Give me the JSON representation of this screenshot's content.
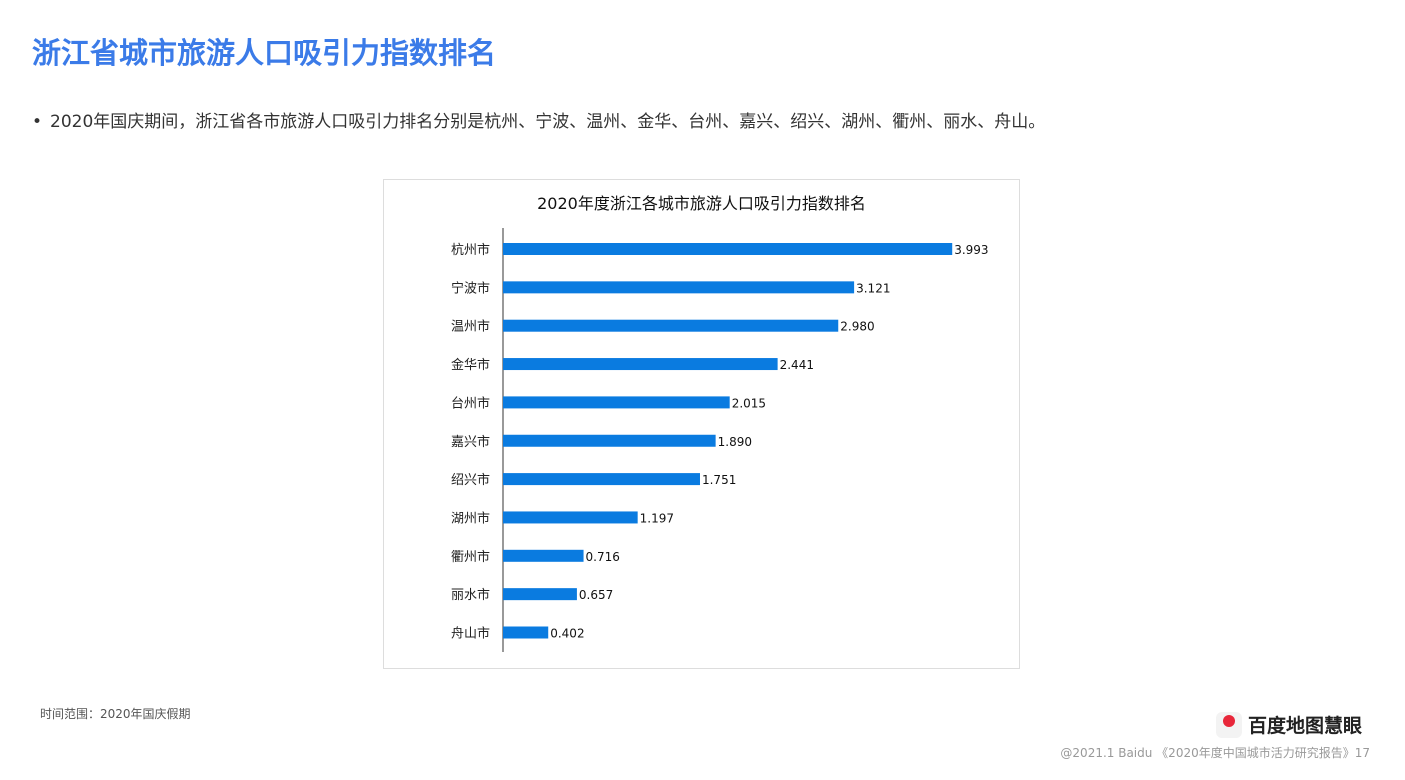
{
  "title": "浙江省城市旅游人口吸引力指数排名",
  "bullet": "2020年国庆期间，浙江省各市旅游人口吸引力排名分别是杭州、宁波、温州、金华、台州、嘉兴、绍兴、湖州、衢州、丽水、舟山。",
  "note": "时间范围：2020年国庆假期",
  "logo": "百度地图慧眼",
  "footer": "@2021.1 Baidu 《2020年度中国城市活力研究报告》17",
  "chart_data": {
    "type": "bar",
    "orientation": "horizontal",
    "title": "2020年度浙江各城市旅游人口吸引力指数排名",
    "categories": [
      "杭州市",
      "宁波市",
      "温州市",
      "金华市",
      "台州市",
      "嘉兴市",
      "绍兴市",
      "湖州市",
      "衢州市",
      "丽水市",
      "舟山市"
    ],
    "values": [
      3.993,
      3.121,
      2.98,
      2.441,
      2.015,
      1.89,
      1.751,
      1.197,
      0.716,
      0.657,
      0.402
    ],
    "labels": [
      "3.993",
      "3.121",
      "2.980",
      "2.441",
      "2.015",
      "1.890",
      "1.751",
      "1.197",
      "0.716",
      "0.657",
      "0.402"
    ],
    "color": "#0a7be0",
    "grid": false
  }
}
